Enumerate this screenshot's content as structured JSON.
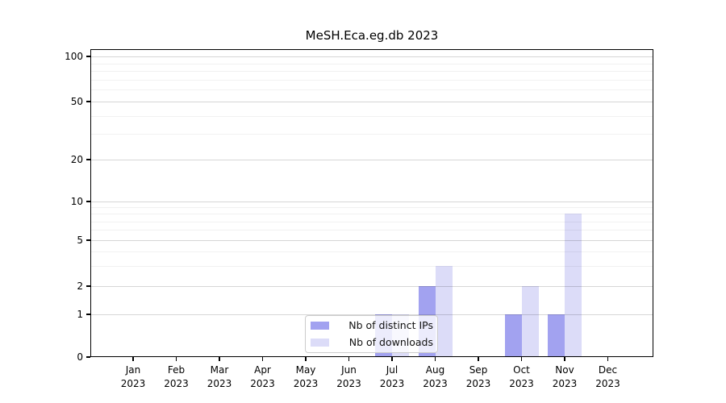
{
  "chart_data": {
    "type": "bar",
    "title": "MeSH.Eca.eg.db 2023",
    "categories": [
      "Jan",
      "Feb",
      "Mar",
      "Apr",
      "May",
      "Jun",
      "Jul",
      "Aug",
      "Sep",
      "Oct",
      "Nov",
      "Dec"
    ],
    "x_tick_line2": "2023",
    "series": [
      {
        "name": "Nb of distinct IPs",
        "color": "#a2a2f0",
        "values": [
          0,
          0,
          0,
          0,
          0,
          0,
          1,
          2,
          0,
          1,
          1,
          0
        ]
      },
      {
        "name": "Nb of downloads",
        "color": "#dcdcf8",
        "values": [
          0,
          0,
          0,
          0,
          0,
          0,
          1,
          3,
          0,
          2,
          8,
          0
        ]
      }
    ],
    "yaxis": {
      "scale": "symlog",
      "major_ticks": [
        0,
        1,
        2,
        5,
        10,
        20,
        50,
        100
      ],
      "minor_gridlines": [
        3,
        4,
        6,
        7,
        8,
        9,
        30,
        40,
        60,
        70,
        80,
        90
      ],
      "ylim": [
        0,
        112
      ]
    },
    "xlabel": "",
    "ylabel": "",
    "grid": "horizontal",
    "legend_position": "inside-bottom-center",
    "colors": {
      "background": "#ffffff",
      "spine": "#000000",
      "major_grid": "#d9d9d9",
      "minor_grid": "#f0f0f0"
    }
  }
}
